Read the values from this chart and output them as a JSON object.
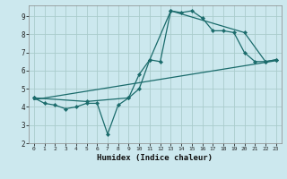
{
  "xlabel": "Humidex (Indice chaleur)",
  "bg_color": "#cce8ee",
  "grid_color": "#aacccc",
  "line_color": "#1a6b6b",
  "xlim": [
    -0.5,
    23.5
  ],
  "ylim": [
    2,
    9.6
  ],
  "xticks": [
    0,
    1,
    2,
    3,
    4,
    5,
    6,
    7,
    8,
    9,
    10,
    11,
    12,
    13,
    14,
    15,
    16,
    17,
    18,
    19,
    20,
    21,
    22,
    23
  ],
  "yticks": [
    2,
    3,
    4,
    5,
    6,
    7,
    8,
    9
  ],
  "line1_x": [
    0,
    1,
    2,
    3,
    4,
    5,
    6,
    7,
    8,
    9,
    10,
    11,
    12,
    13,
    14,
    15,
    16,
    17,
    18,
    19,
    20,
    21,
    22,
    23
  ],
  "line1_y": [
    4.5,
    4.2,
    4.1,
    3.9,
    4.0,
    4.2,
    4.2,
    2.5,
    4.1,
    4.5,
    5.8,
    6.6,
    6.5,
    9.3,
    9.2,
    9.3,
    8.9,
    8.2,
    8.2,
    8.1,
    7.0,
    6.5,
    6.5,
    6.6
  ],
  "line2_x": [
    0,
    5,
    9,
    10,
    11,
    13,
    20,
    22,
    23
  ],
  "line2_y": [
    4.5,
    4.3,
    4.5,
    5.0,
    6.6,
    9.3,
    8.1,
    6.5,
    6.6
  ],
  "line3_x": [
    0,
    23
  ],
  "line3_y": [
    4.4,
    6.55
  ]
}
